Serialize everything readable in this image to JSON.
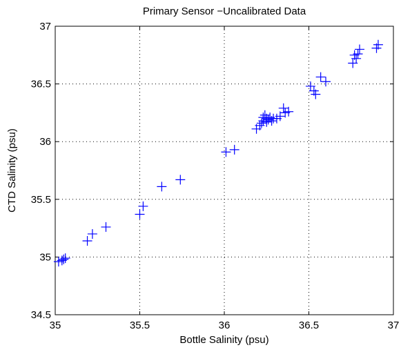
{
  "chart_data": {
    "type": "scatter",
    "title": "Primary Sensor −Uncalibrated Data",
    "xlabel": "Bottle Salinity (psu)",
    "ylabel": "CTD Salinity (psu)",
    "xlim": [
      35,
      37
    ],
    "ylim": [
      34.5,
      37
    ],
    "xticks": [
      35,
      35.5,
      36,
      36.5,
      37
    ],
    "yticks": [
      34.5,
      35,
      35.5,
      36,
      36.5,
      37
    ],
    "xtick_labels": [
      "35",
      "35.5",
      "36",
      "36.5",
      "37"
    ],
    "ytick_labels": [
      "34.5",
      "35",
      "35.5",
      "36",
      "36.5",
      "37"
    ],
    "grid": true,
    "marker": "plus",
    "color": "#0000ff",
    "points": [
      {
        "x": 35.02,
        "y": 34.96
      },
      {
        "x": 35.04,
        "y": 34.97
      },
      {
        "x": 35.05,
        "y": 34.98
      },
      {
        "x": 35.06,
        "y": 34.99
      },
      {
        "x": 35.19,
        "y": 35.14
      },
      {
        "x": 35.22,
        "y": 35.2
      },
      {
        "x": 35.3,
        "y": 35.26
      },
      {
        "x": 35.5,
        "y": 35.37
      },
      {
        "x": 35.52,
        "y": 35.44
      },
      {
        "x": 35.63,
        "y": 35.61
      },
      {
        "x": 35.74,
        "y": 35.67
      },
      {
        "x": 36.01,
        "y": 35.91
      },
      {
        "x": 36.06,
        "y": 35.93
      },
      {
        "x": 36.19,
        "y": 36.11
      },
      {
        "x": 36.21,
        "y": 36.14
      },
      {
        "x": 36.22,
        "y": 36.16
      },
      {
        "x": 36.23,
        "y": 36.18
      },
      {
        "x": 36.23,
        "y": 36.21
      },
      {
        "x": 36.24,
        "y": 36.23
      },
      {
        "x": 36.25,
        "y": 36.2
      },
      {
        "x": 36.25,
        "y": 36.17
      },
      {
        "x": 36.26,
        "y": 36.19
      },
      {
        "x": 36.27,
        "y": 36.21
      },
      {
        "x": 36.28,
        "y": 36.18
      },
      {
        "x": 36.29,
        "y": 36.2
      },
      {
        "x": 36.31,
        "y": 36.2
      },
      {
        "x": 36.33,
        "y": 36.22
      },
      {
        "x": 36.35,
        "y": 36.29
      },
      {
        "x": 36.36,
        "y": 36.25
      },
      {
        "x": 36.38,
        "y": 36.26
      },
      {
        "x": 36.51,
        "y": 36.48
      },
      {
        "x": 36.53,
        "y": 36.44
      },
      {
        "x": 36.54,
        "y": 36.41
      },
      {
        "x": 36.57,
        "y": 36.56
      },
      {
        "x": 36.6,
        "y": 36.52
      },
      {
        "x": 36.76,
        "y": 36.68
      },
      {
        "x": 36.77,
        "y": 36.75
      },
      {
        "x": 36.78,
        "y": 36.72
      },
      {
        "x": 36.79,
        "y": 36.76
      },
      {
        "x": 36.8,
        "y": 36.8
      },
      {
        "x": 36.9,
        "y": 36.81
      },
      {
        "x": 36.91,
        "y": 36.84
      }
    ]
  }
}
